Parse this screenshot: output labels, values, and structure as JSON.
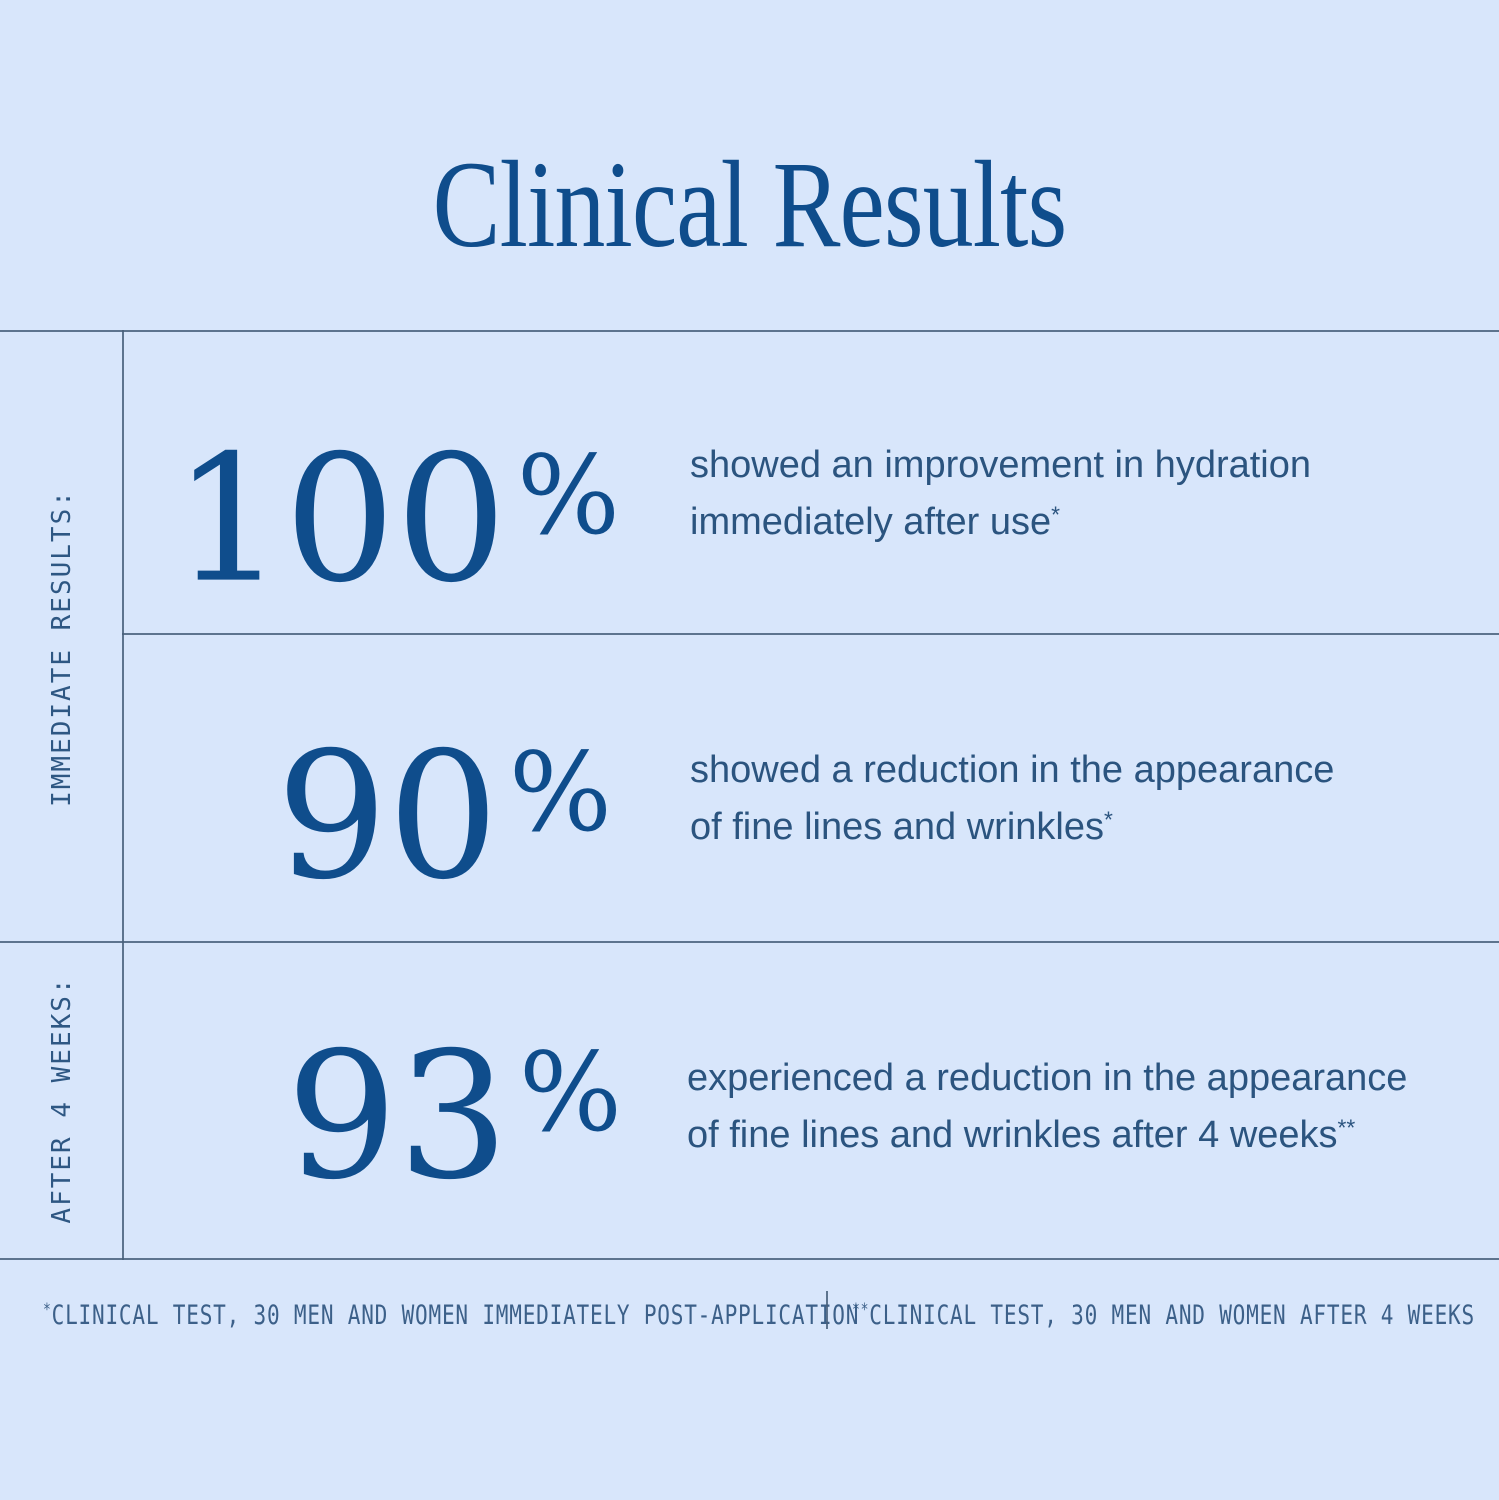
{
  "title": "Clinical Results",
  "colors": {
    "background": "#d8e6fb",
    "primary_blue": "#0f4d8c",
    "body_blue": "#2b547f",
    "label_blue": "#2e5783",
    "footnote_blue": "#3c6089",
    "grid_line": "#48617a"
  },
  "sections": [
    {
      "label": "IMMEDIATE RESULTS:"
    },
    {
      "label": "AFTER 4 WEEKS:"
    }
  ],
  "stats": [
    {
      "value": "100",
      "unit": "%",
      "line1": "showed an improvement in hydration",
      "line2": "immediately after use",
      "marker": "*"
    },
    {
      "value": "90",
      "unit": "%",
      "line1": "showed a reduction in the appearance",
      "line2": "of fine lines and wrinkles",
      "marker": "*"
    },
    {
      "value": "93",
      "unit": "%",
      "line1": "experienced a reduction in the appearance",
      "line2": "of fine lines and wrinkles after 4 weeks",
      "marker": "**"
    }
  ],
  "footnotes": [
    {
      "marker": "*",
      "text": "CLINICAL TEST, 30 MEN AND WOMEN IMMEDIATELY POST-APPLICATION"
    },
    {
      "marker": "**",
      "text": "CLINICAL TEST, 30 MEN AND WOMEN AFTER 4 WEEKS"
    }
  ]
}
